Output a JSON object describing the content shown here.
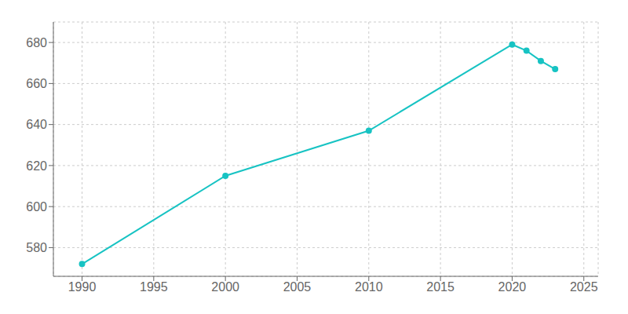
{
  "chart_data": {
    "type": "line",
    "x": [
      1990,
      2000,
      2010,
      2020,
      2021,
      2022,
      2023
    ],
    "series": [
      {
        "values": [
          572,
          615,
          637,
          679,
          676,
          671,
          667
        ],
        "color": "#17c3c3",
        "marker": "circle",
        "line_style": "solid"
      }
    ],
    "xlim": [
      1988,
      2026
    ],
    "ylim": [
      566,
      690
    ],
    "xticks": [
      1990,
      1995,
      2000,
      2005,
      2010,
      2015,
      2020,
      2025
    ],
    "yticks": [
      580,
      600,
      620,
      640,
      660,
      680
    ],
    "grid": true
  }
}
